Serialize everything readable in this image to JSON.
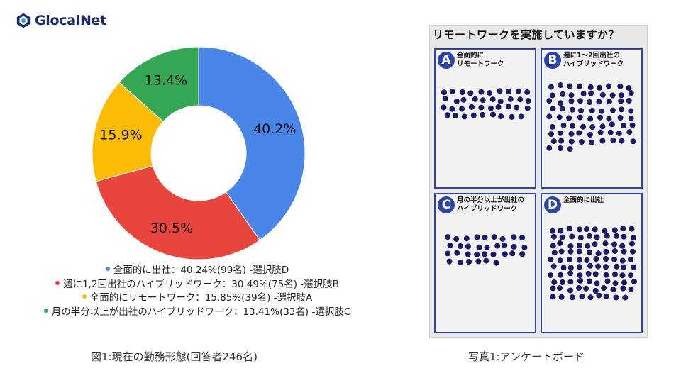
{
  "brand": {
    "name": "GlocalNet",
    "color": "#1b2a6b",
    "icon": "glocalnet-logo-icon"
  },
  "chart_data": {
    "type": "pie",
    "style": "donut",
    "categories": [
      "全面的に出社",
      "週に1,2回出社のハイブリッドワーク",
      "全面的にリモートワーク",
      "月の半分以上が出社のハイブリッドワーク"
    ],
    "values": [
      40.24,
      30.49,
      15.85,
      13.41
    ],
    "slice_labels": [
      "40.2%",
      "30.5%",
      "15.9%",
      "13.4%"
    ],
    "colors": [
      "#4a86e8",
      "#e8453c",
      "#fbbc04",
      "#34a853"
    ],
    "legend_placement": "bottom",
    "legend": [
      "全面的に出社：40.24%(99名) -選択肢D",
      "週に1,2回出社のハイブリッドワーク：30.49%(75名) -選択肢B",
      "全面的にリモートワーク：15.85%(39名) -選択肢A",
      "月の半分以上が出社のハイブリッドワーク：13.41%(33名) -選択肢C"
    ]
  },
  "captions": {
    "figure": "図1:現在の勤務形態(回答者246名)",
    "photo": "写真1:アンケートボード"
  },
  "board": {
    "title": "リモートワークを実施していますか？",
    "panel_color": "#2d46a5",
    "panels": [
      {
        "letter": "A",
        "label": "全面的に\nリモートワーク",
        "dots": 39
      },
      {
        "letter": "B",
        "label": "週に1〜2回出社の\nハイブリッドワーク",
        "dots": 75
      },
      {
        "letter": "C",
        "label": "月の半分以上が出社の\nハイブリッドワーク",
        "dots": 33
      },
      {
        "letter": "D",
        "label": "全面的に出社",
        "dots": 99
      }
    ]
  }
}
